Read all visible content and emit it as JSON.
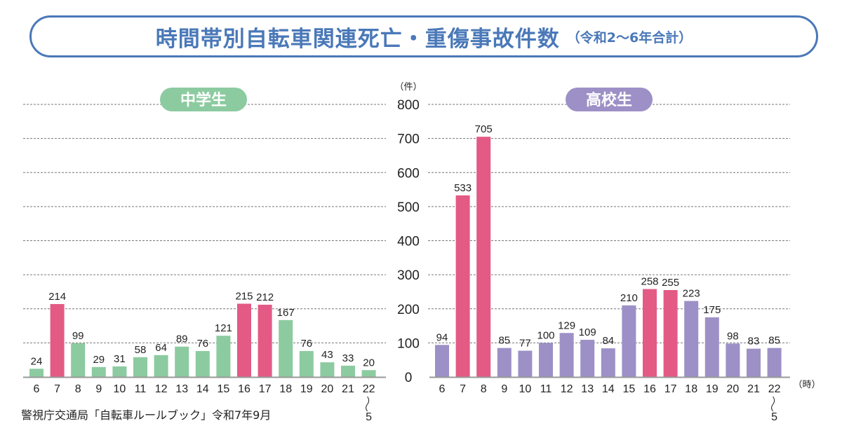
{
  "title": "時間帯別自転車関連死亡・重傷事故件数",
  "subtitle": "（令和2〜6年合計）",
  "source": "警視庁交通局「自転車ルールブック」令和7年9月",
  "colors": {
    "junior_high": "#8ccba0",
    "high_school": "#9d90c6",
    "highlight": "#e35a85",
    "title": "#4a78b8"
  },
  "chart_data": [
    {
      "type": "bar",
      "label": "中学生",
      "categories": [
        "6",
        "7",
        "8",
        "9",
        "10",
        "11",
        "12",
        "13",
        "14",
        "15",
        "16",
        "17",
        "18",
        "19",
        "20",
        "21",
        "22〜5"
      ],
      "values": [
        24,
        214,
        99,
        29,
        31,
        58,
        64,
        89,
        76,
        121,
        215,
        212,
        167,
        76,
        43,
        33,
        20
      ],
      "highlighted": [
        "7",
        "16",
        "17"
      ],
      "ylabel": "（件）",
      "xlabel": "（時）",
      "ylim": [
        0,
        800
      ],
      "yticks": [
        0,
        100,
        200,
        300,
        400,
        500,
        600,
        700,
        800
      ],
      "grid": true
    },
    {
      "type": "bar",
      "label": "高校生",
      "categories": [
        "6",
        "7",
        "8",
        "9",
        "10",
        "11",
        "12",
        "13",
        "14",
        "15",
        "16",
        "17",
        "18",
        "19",
        "20",
        "21",
        "22〜5"
      ],
      "values": [
        94,
        533,
        705,
        85,
        77,
        100,
        129,
        109,
        84,
        210,
        258,
        255,
        223,
        175,
        98,
        83,
        85
      ],
      "highlighted": [
        "7",
        "8",
        "16",
        "17"
      ],
      "ylabel": "（件）",
      "xlabel": "（時）",
      "ylim": [
        0,
        800
      ],
      "yticks": [
        0,
        100,
        200,
        300,
        400,
        500,
        600,
        700,
        800
      ],
      "grid": true
    }
  ]
}
